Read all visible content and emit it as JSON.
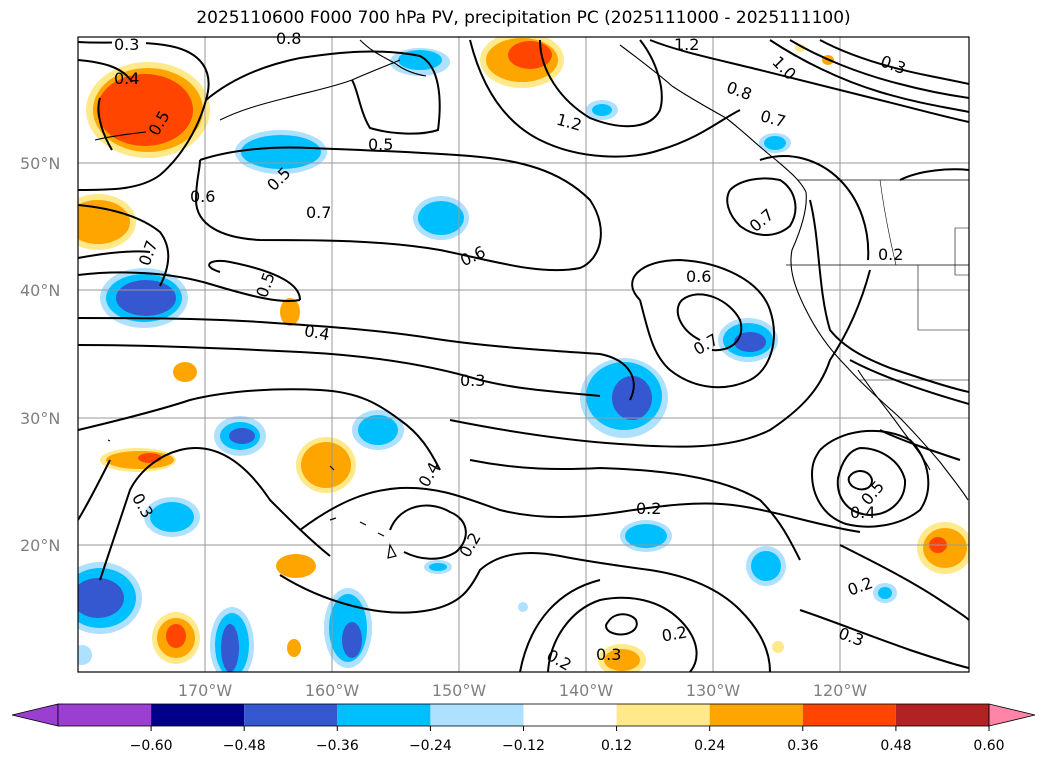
{
  "title": "2025110600 F000 700 hPa PV, precipitation PC (2025111000 - 2025111100)",
  "lat_labels": [
    "50°N",
    "40°N",
    "30°N",
    "20°N"
  ],
  "lon_labels": [
    "170°W",
    "160°W",
    "150°W",
    "140°W",
    "130°W",
    "120°W"
  ],
  "contour_labels": [
    "0.3",
    "0.4",
    "0.5",
    "0.6",
    "0.7",
    "0.8",
    "1.2",
    "0.5",
    "0.5",
    "0.6",
    "0.7",
    "0.6",
    "0.7",
    "0.8",
    "0.5",
    "0.4",
    "0.3",
    "0.6",
    "0.7",
    "0.2",
    "0.4",
    "0.3",
    "0.2",
    "0.2",
    "0.2",
    "0.3",
    "0.2",
    "0.3",
    "0.5",
    "0.4",
    "0.2",
    "0.3",
    "1.0",
    "0.3",
    "0.7"
  ],
  "colorbar": {
    "colors": [
      "#9b3fd1",
      "#00008b",
      "#3557d0",
      "#00bfff",
      "#aee0ff",
      "#ffffff",
      "#ffe98a",
      "#ffa500",
      "#ff4500",
      "#b22222",
      "#ff85a8"
    ],
    "tick_labels": [
      "−0.60",
      "−0.48",
      "−0.36",
      "−0.24",
      "−0.12",
      "0.12",
      "0.24",
      "0.36",
      "0.48",
      "0.60"
    ]
  }
}
